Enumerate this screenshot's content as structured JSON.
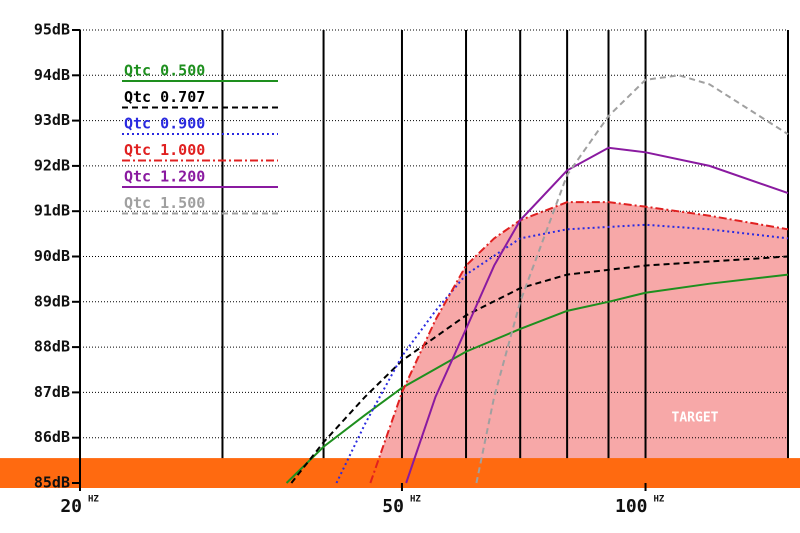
{
  "chart_data": {
    "type": "line",
    "x_unit": "HZ",
    "xscale": "log",
    "xlim": [
      20,
      150
    ],
    "ylim": [
      85,
      95
    ],
    "xticks": [
      20,
      50,
      100
    ],
    "xgrid": [
      30,
      40,
      50,
      60,
      70,
      80,
      90,
      100,
      150
    ],
    "yticks": [
      {
        "value": 85,
        "label": "85dB"
      },
      {
        "value": 86,
        "label": "86dB"
      },
      {
        "value": 87,
        "label": "87dB"
      },
      {
        "value": 88,
        "label": "88dB"
      },
      {
        "value": 89,
        "label": "89dB"
      },
      {
        "value": 90,
        "label": "90dB"
      },
      {
        "value": 91,
        "label": "91dB"
      },
      {
        "value": 92,
        "label": "92dB"
      },
      {
        "value": 93,
        "label": "93dB"
      },
      {
        "value": 94,
        "label": "94dB"
      },
      {
        "value": 95,
        "label": "95dB"
      }
    ],
    "grid": true,
    "legend": "top-left",
    "band": [
      85,
      85.55
    ],
    "band_color": "#ff6a10",
    "target_label": "TARGET",
    "target_fill": "#f7a8a8",
    "target_series": 3,
    "series": [
      {
        "name": "Qtc 0.500",
        "color": "#1e8f1e",
        "style": "solid",
        "x": [
          36,
          40,
          45,
          50,
          60,
          70,
          80,
          90,
          100,
          120,
          150
        ],
        "values": [
          85,
          85.8,
          86.5,
          87.1,
          87.9,
          88.4,
          88.8,
          89.0,
          89.2,
          89.4,
          89.6
        ]
      },
      {
        "name": "Qtc 0.707",
        "color": "#000000",
        "style": "dashed",
        "x": [
          36.5,
          40,
          45,
          50,
          60,
          70,
          80,
          100,
          150
        ],
        "values": [
          85,
          85.9,
          86.9,
          87.7,
          88.7,
          89.3,
          89.6,
          89.8,
          90.0
        ]
      },
      {
        "name": "Qtc 0.900",
        "color": "#2a2ae0",
        "style": "dotted",
        "x": [
          41.5,
          45,
          50,
          55,
          60,
          70,
          80,
          100,
          120,
          150
        ],
        "values": [
          85,
          86.3,
          87.8,
          88.8,
          89.6,
          90.4,
          90.6,
          90.7,
          90.6,
          90.4
        ]
      },
      {
        "name": "Qtc 1.000",
        "color": "#e02020",
        "style": "dashdot",
        "x": [
          45.7,
          50,
          55,
          60,
          65,
          70,
          80,
          90,
          100,
          120,
          150
        ],
        "values": [
          85,
          87.0,
          88.6,
          89.8,
          90.4,
          90.8,
          91.2,
          91.2,
          91.1,
          90.9,
          90.6
        ]
      },
      {
        "name": "Qtc 1.200",
        "color": "#8a1aa0",
        "style": "solid",
        "x": [
          50.6,
          55,
          60,
          65,
          70,
          80,
          90,
          100,
          120,
          150
        ],
        "values": [
          85,
          86.9,
          88.4,
          89.8,
          90.8,
          91.9,
          92.4,
          92.3,
          92.0,
          91.4
        ]
      },
      {
        "name": "Qtc 1.500",
        "color": "#a0a0a0",
        "style": "dashed",
        "x": [
          61.8,
          65,
          70,
          80,
          90,
          100,
          110,
          120,
          150
        ],
        "values": [
          85,
          86.9,
          89.0,
          91.8,
          93.1,
          93.9,
          94.0,
          93.8,
          92.7
        ]
      }
    ]
  }
}
